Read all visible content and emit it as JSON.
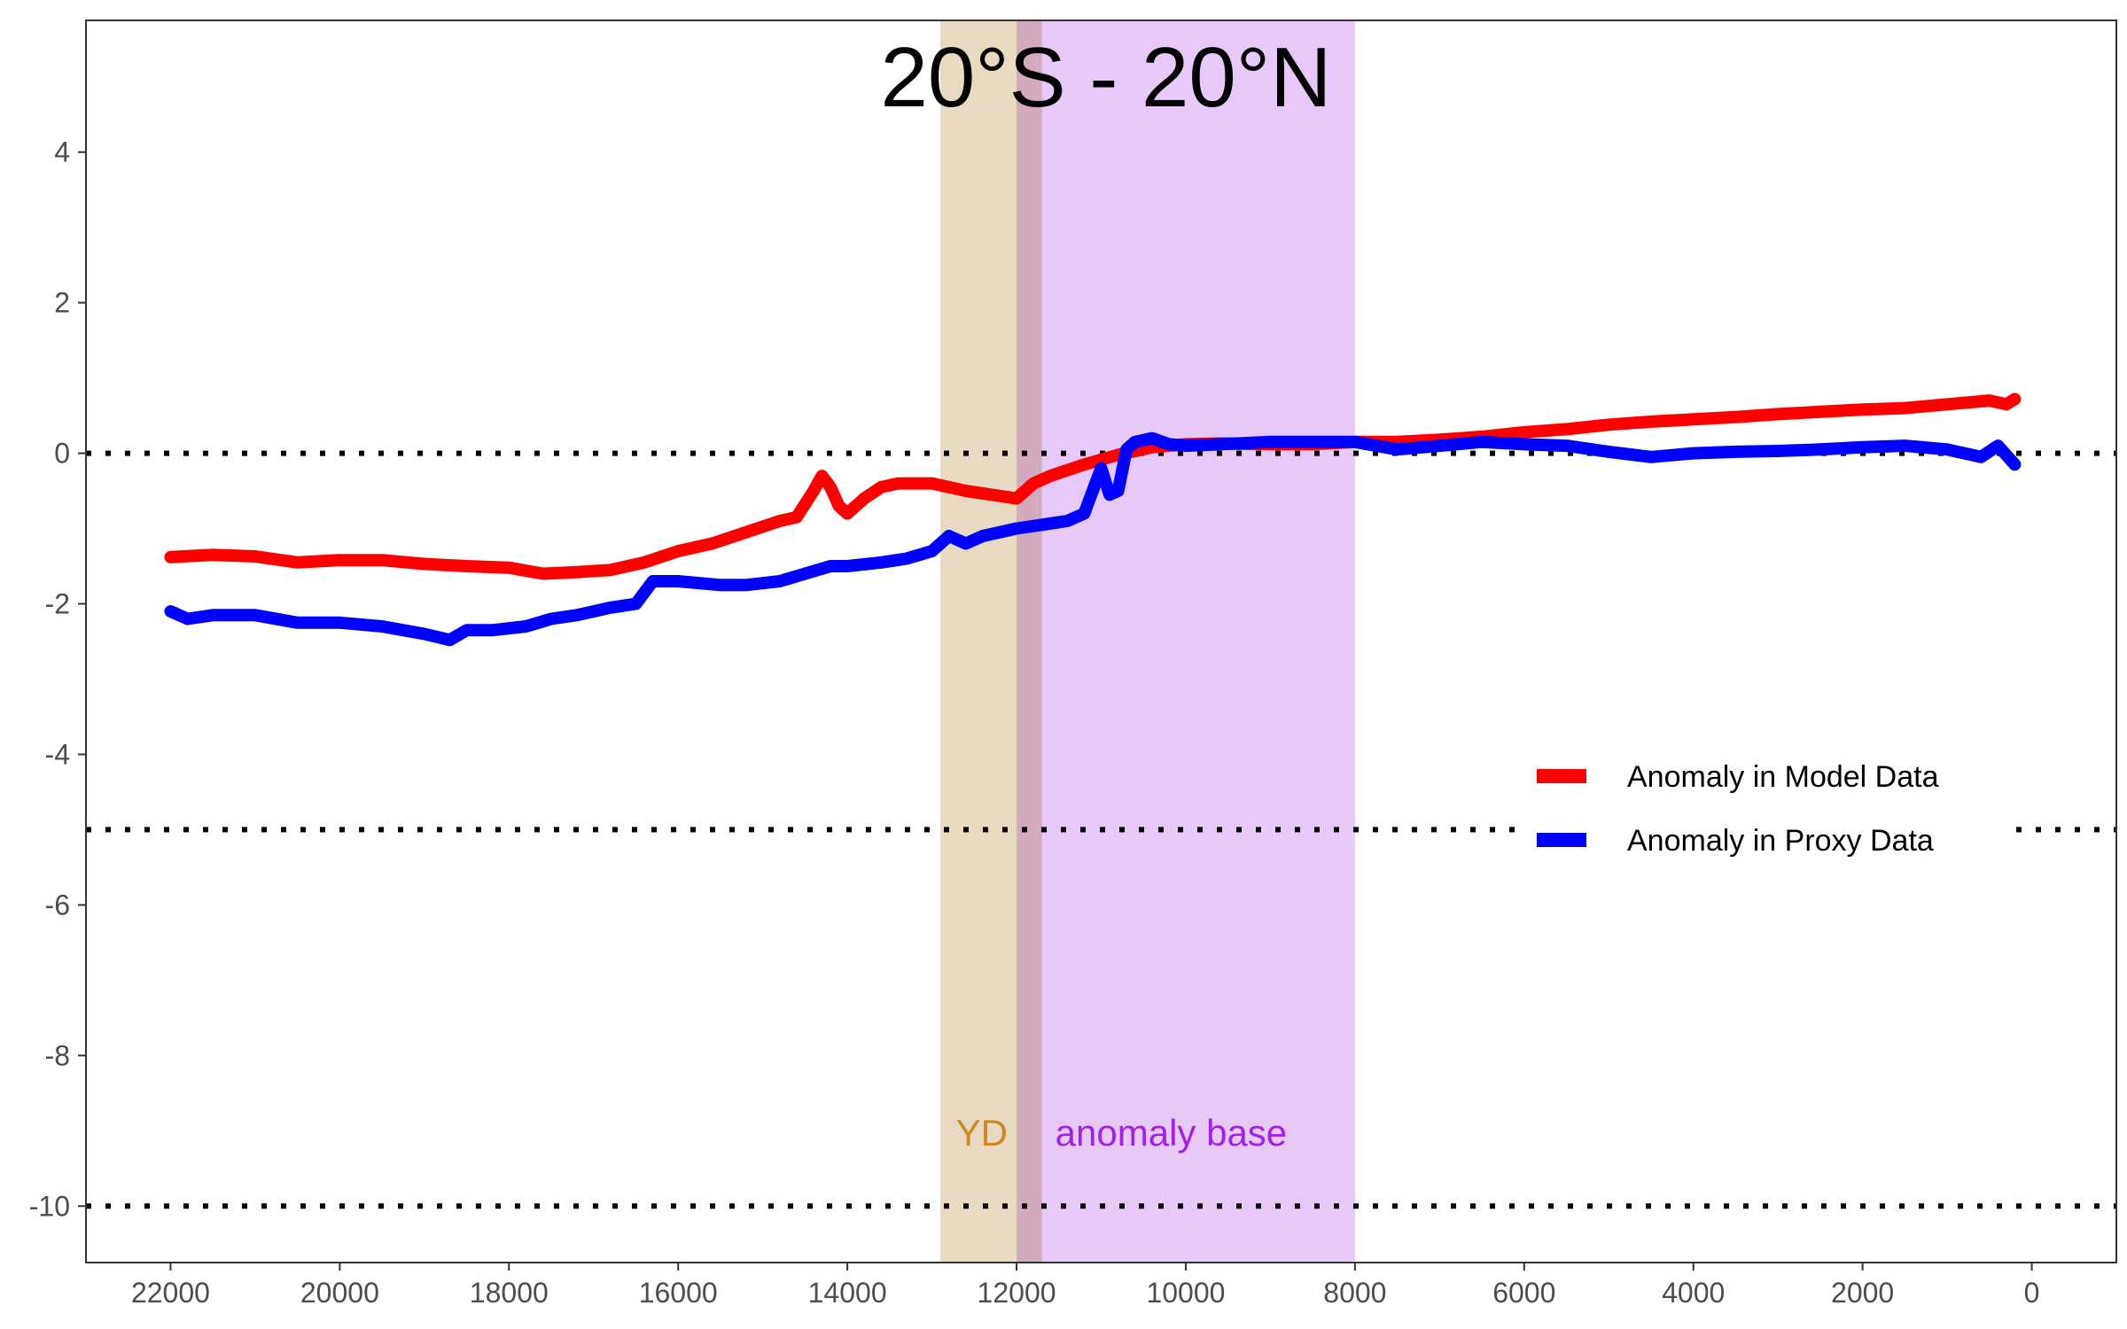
{
  "chart_data": {
    "type": "line",
    "title": "20°S - 20°N",
    "xlabel": "",
    "ylabel": "",
    "xlim": [
      23000,
      -1000
    ],
    "ylim": [
      -10.75,
      5.75
    ],
    "x_ticks": [
      22000,
      20000,
      18000,
      16000,
      14000,
      12000,
      10000,
      8000,
      6000,
      4000,
      2000,
      0
    ],
    "x_tick_labels": [
      "22000",
      "20000",
      "18000",
      "16000",
      "14000",
      "12000",
      "10000",
      "8000",
      "6000",
      "4000",
      "2000",
      "0"
    ],
    "y_ticks": [
      4,
      2,
      0,
      -2,
      -4,
      -6,
      -8,
      -10
    ],
    "y_tick_labels": [
      "4",
      "2",
      "0",
      "-2",
      "-4",
      "-6",
      "-8",
      "-10"
    ],
    "grid": false,
    "reference_lines": [
      0,
      -5,
      -10
    ],
    "bands": [
      {
        "label": "YD",
        "from": 12900,
        "to": 11700,
        "color": "#e8d9c3",
        "label_color": "#cc8a1f"
      },
      {
        "label": "anomaly base",
        "from": 12000,
        "to": 8000,
        "color": "#e6c9f7",
        "label_color": "#a020f0"
      }
    ],
    "legend": {
      "position": "right-inside"
    },
    "series": [
      {
        "name": "Anomaly in Model Data",
        "color": "#ff0000",
        "x": [
          22000,
          21500,
          21000,
          20500,
          20000,
          19500,
          19000,
          18500,
          18000,
          17600,
          17200,
          16800,
          16400,
          16000,
          15600,
          15200,
          14800,
          14600,
          14400,
          14300,
          14200,
          14100,
          14000,
          13800,
          13600,
          13400,
          13000,
          12600,
          12300,
          12000,
          11800,
          11600,
          11200,
          10800,
          10400,
          10000,
          9600,
          9000,
          8500,
          8000,
          7500,
          7000,
          6500,
          6000,
          5500,
          5000,
          4500,
          4000,
          3500,
          3000,
          2500,
          2000,
          1500,
          1000,
          500,
          300,
          200
        ],
        "values": [
          -1.38,
          -1.35,
          -1.37,
          -1.45,
          -1.42,
          -1.42,
          -1.47,
          -1.5,
          -1.52,
          -1.6,
          -1.58,
          -1.55,
          -1.45,
          -1.3,
          -1.2,
          -1.05,
          -0.9,
          -0.85,
          -0.5,
          -0.3,
          -0.45,
          -0.7,
          -0.8,
          -0.6,
          -0.45,
          -0.4,
          -0.4,
          -0.5,
          -0.55,
          -0.6,
          -0.4,
          -0.3,
          -0.15,
          -0.02,
          0.08,
          0.12,
          0.13,
          0.12,
          0.12,
          0.15,
          0.15,
          0.18,
          0.22,
          0.28,
          0.32,
          0.38,
          0.42,
          0.45,
          0.48,
          0.52,
          0.55,
          0.58,
          0.6,
          0.65,
          0.7,
          0.65,
          0.72
        ]
      },
      {
        "name": "Anomaly in Proxy Data",
        "color": "#0000ff",
        "x": [
          22000,
          21800,
          21500,
          21000,
          20500,
          20000,
          19500,
          19000,
          18700,
          18500,
          18200,
          17800,
          17500,
          17200,
          16800,
          16500,
          16300,
          16000,
          15500,
          15200,
          14800,
          14500,
          14200,
          14000,
          13600,
          13300,
          13000,
          12800,
          12600,
          12400,
          12000,
          11700,
          11400,
          11200,
          11000,
          10900,
          10800,
          10700,
          10600,
          10400,
          10200,
          10000,
          9600,
          9000,
          8500,
          8000,
          7500,
          7000,
          6500,
          6000,
          5500,
          5000,
          4500,
          4000,
          3500,
          3000,
          2500,
          2000,
          1500,
          1000,
          600,
          400,
          200
        ],
        "values": [
          -2.1,
          -2.2,
          -2.15,
          -2.15,
          -2.25,
          -2.25,
          -2.3,
          -2.4,
          -2.48,
          -2.35,
          -2.35,
          -2.3,
          -2.2,
          -2.15,
          -2.05,
          -2.0,
          -1.7,
          -1.7,
          -1.75,
          -1.75,
          -1.7,
          -1.6,
          -1.5,
          -1.5,
          -1.45,
          -1.4,
          -1.3,
          -1.1,
          -1.2,
          -1.1,
          -1.0,
          -0.95,
          -0.9,
          -0.8,
          -0.2,
          -0.55,
          -0.5,
          0.05,
          0.15,
          0.2,
          0.12,
          0.1,
          0.12,
          0.15,
          0.15,
          0.15,
          0.05,
          0.1,
          0.15,
          0.12,
          0.1,
          0.02,
          -0.05,
          0.0,
          0.02,
          0.03,
          0.05,
          0.08,
          0.1,
          0.05,
          -0.05,
          0.1,
          -0.15
        ]
      }
    ]
  }
}
